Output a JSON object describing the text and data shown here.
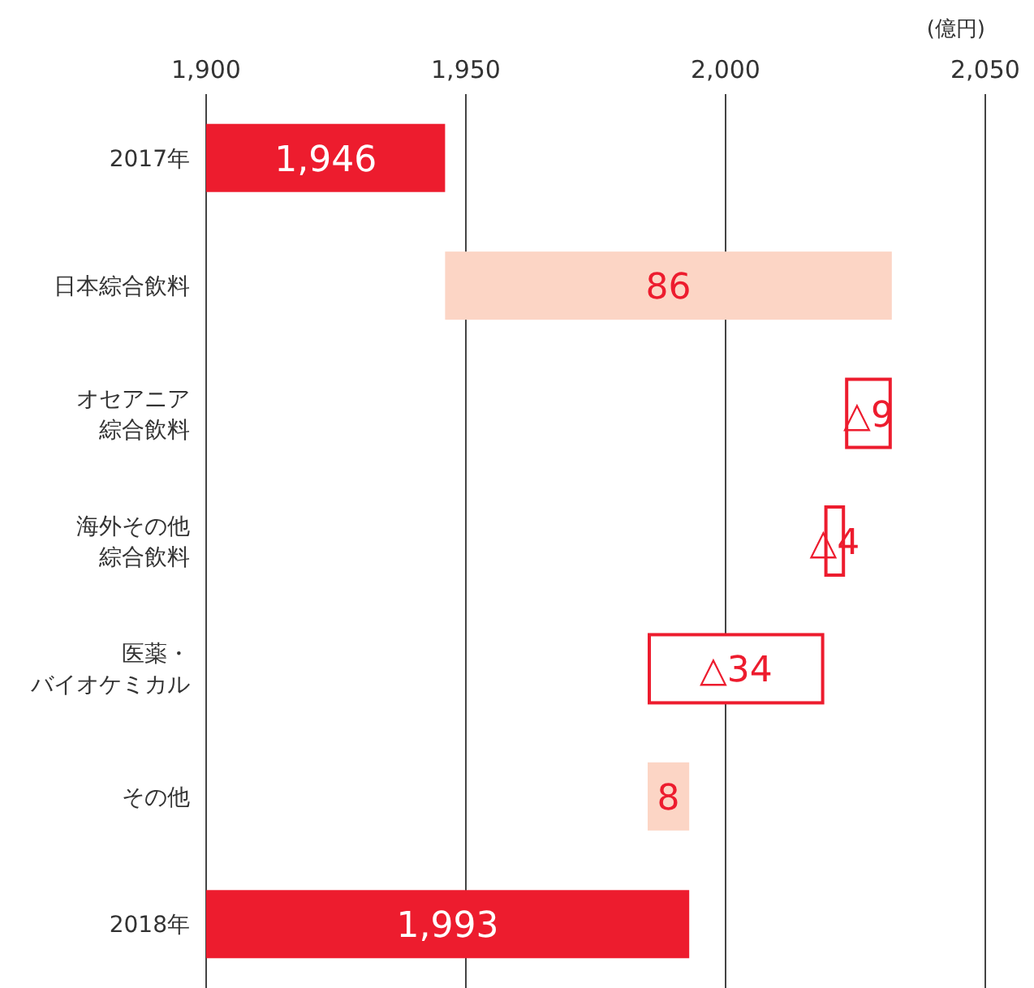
{
  "chart_data": {
    "type": "bar",
    "orientation": "horizontal",
    "xlabel": "(億円)",
    "categories": [
      "2017年",
      "日本綜合飲料",
      "オセアニア綜合飲料",
      "海外その他綜合飲料",
      "医薬・バイオケミカル",
      "その他",
      "2018年"
    ],
    "values": [
      1946,
      86,
      -9,
      -4,
      -34,
      8,
      1993
    ],
    "base": [
      null,
      1946,
      2032,
      2023,
      2019,
      1985,
      null
    ],
    "colors": [
      "#ed1c2e",
      "#fcd5c5",
      "#ed1c2e",
      "#ed1c2e",
      "#ed1c2e",
      "#fcd5c5",
      "#ed1c2e"
    ],
    "value_labels": [
      "1,946",
      "86",
      "△9",
      "△4",
      "△34",
      "8",
      "1,993"
    ],
    "xlim": [
      1900,
      2050
    ],
    "xticks": [
      {
        "value": 1900,
        "label": "1,900"
      },
      {
        "value": 1950,
        "label": "1,950"
      },
      {
        "value": 2000,
        "label": "2,000"
      },
      {
        "value": 2050,
        "label": "2,050"
      }
    ],
    "grid": "x"
  }
}
